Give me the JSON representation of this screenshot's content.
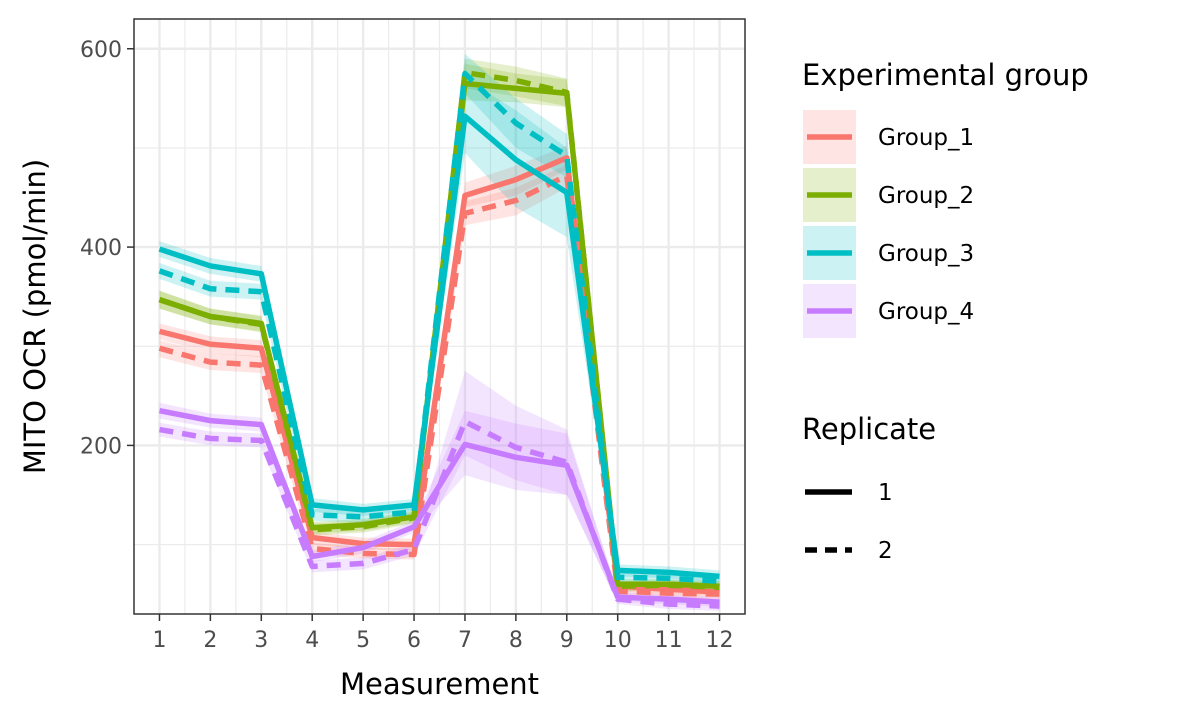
{
  "chart_data": {
    "type": "line",
    "title": "",
    "xlabel": "Measurement",
    "ylabel": "MITO OCR (pmol/min)",
    "x": [
      1,
      2,
      3,
      4,
      5,
      6,
      7,
      8,
      9,
      10,
      11,
      12
    ],
    "x_ticks": [
      "1",
      "2",
      "3",
      "4",
      "5",
      "6",
      "7",
      "8",
      "9",
      "10",
      "11",
      "12"
    ],
    "y_ticks": [
      "200",
      "400",
      "600"
    ],
    "xlim": [
      0.5,
      12.5
    ],
    "ylim": [
      30,
      630
    ],
    "grid": true,
    "legend": {
      "placement": "right",
      "group_title": "Experimental group",
      "replicate_title": "Replicate",
      "groups": [
        {
          "name": "Group_1",
          "color": "#F8766D"
        },
        {
          "name": "Group_2",
          "color": "#7CAE00"
        },
        {
          "name": "Group_3",
          "color": "#00BFC4"
        },
        {
          "name": "Group_4",
          "color": "#C77CFF"
        }
      ],
      "replicates": [
        {
          "name": "1",
          "linetype": "solid"
        },
        {
          "name": "2",
          "linetype": "dashed"
        }
      ]
    },
    "series": [
      {
        "group": "Group_1",
        "replicate": "1",
        "color": "#F8766D",
        "linetype": "solid",
        "values": [
          315,
          302,
          298,
          107,
          101,
          100,
          452,
          468,
          490,
          58,
          55,
          52
        ],
        "lower": [
          307,
          293,
          289,
          100,
          95,
          94,
          440,
          452,
          478,
          53,
          50,
          48
        ],
        "upper": [
          323,
          310,
          306,
          113,
          107,
          106,
          465,
          482,
          502,
          63,
          60,
          57
        ]
      },
      {
        "group": "Group_1",
        "replicate": "2",
        "color": "#F8766D",
        "linetype": "dashed",
        "values": [
          298,
          284,
          281,
          96,
          91,
          90,
          434,
          447,
          472,
          53,
          51,
          50
        ],
        "lower": [
          289,
          276,
          273,
          90,
          86,
          85,
          422,
          432,
          460,
          48,
          46,
          45
        ],
        "upper": [
          306,
          293,
          290,
          102,
          97,
          96,
          446,
          460,
          483,
          58,
          56,
          55
        ]
      },
      {
        "group": "Group_2",
        "replicate": "1",
        "color": "#7CAE00",
        "linetype": "solid",
        "values": [
          347,
          330,
          323,
          117,
          120,
          128,
          565,
          560,
          555,
          60,
          60,
          58
        ],
        "lower": [
          338,
          322,
          315,
          111,
          114,
          122,
          548,
          546,
          541,
          55,
          55,
          53
        ],
        "upper": [
          356,
          338,
          331,
          123,
          126,
          134,
          585,
          575,
          569,
          65,
          65,
          63
        ]
      },
      {
        "group": "Group_2",
        "replicate": "2",
        "color": "#7CAE00",
        "linetype": "dashed",
        "values": [
          347,
          330,
          322,
          115,
          118,
          127,
          576,
          568,
          556,
          58,
          59,
          57
        ],
        "lower": [
          338,
          322,
          314,
          109,
          112,
          121,
          560,
          552,
          542,
          53,
          54,
          52
        ],
        "upper": [
          356,
          338,
          330,
          121,
          124,
          133,
          590,
          582,
          570,
          63,
          64,
          62
        ]
      },
      {
        "group": "Group_3",
        "replicate": "1",
        "color": "#00BFC4",
        "linetype": "solid",
        "values": [
          398,
          381,
          373,
          140,
          135,
          140,
          532,
          488,
          455,
          74,
          72,
          68
        ],
        "lower": [
          390,
          373,
          365,
          133,
          129,
          134,
          495,
          440,
          410,
          68,
          66,
          62
        ],
        "upper": [
          406,
          389,
          381,
          147,
          141,
          146,
          570,
          538,
          500,
          80,
          78,
          74
        ]
      },
      {
        "group": "Group_3",
        "replicate": "2",
        "color": "#00BFC4",
        "linetype": "dashed",
        "values": [
          376,
          358,
          355,
          130,
          128,
          133,
          575,
          525,
          492,
          67,
          66,
          63
        ],
        "lower": [
          368,
          350,
          347,
          124,
          122,
          127,
          555,
          500,
          470,
          61,
          60,
          57
        ],
        "upper": [
          384,
          366,
          363,
          136,
          134,
          139,
          595,
          550,
          514,
          73,
          72,
          69
        ]
      },
      {
        "group": "Group_4",
        "replicate": "1",
        "color": "#C77CFF",
        "linetype": "solid",
        "values": [
          235,
          225,
          221,
          88,
          97,
          118,
          201,
          188,
          180,
          47,
          45,
          42
        ],
        "lower": [
          227,
          218,
          214,
          82,
          91,
          112,
          170,
          155,
          150,
          42,
          40,
          37
        ],
        "upper": [
          243,
          232,
          228,
          94,
          103,
          124,
          235,
          222,
          212,
          52,
          50,
          47
        ]
      },
      {
        "group": "Group_4",
        "replicate": "2",
        "color": "#C77CFF",
        "linetype": "dashed",
        "values": [
          216,
          207,
          205,
          78,
          81,
          95,
          224,
          198,
          183,
          45,
          40,
          38
        ],
        "lower": [
          209,
          200,
          198,
          72,
          75,
          89,
          190,
          165,
          150,
          40,
          35,
          33
        ],
        "upper": [
          223,
          214,
          212,
          84,
          87,
          101,
          275,
          240,
          216,
          50,
          45,
          43
        ]
      }
    ]
  }
}
